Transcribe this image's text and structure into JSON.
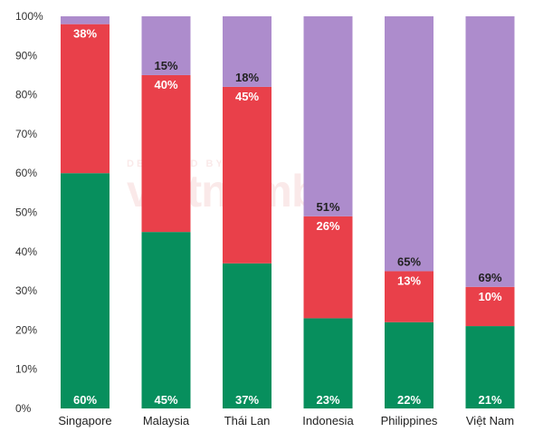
{
  "chart_data": {
    "type": "bar",
    "stacked": true,
    "categories": [
      "Singapore",
      "Malaysia",
      "Thái Lan",
      "Indonesia",
      "Philippines",
      "Việt Nam"
    ],
    "series": [
      {
        "values": [
          60,
          45,
          37,
          23,
          22,
          21
        ],
        "color": "#078f5d",
        "labels": [
          "60%",
          "45%",
          "37%",
          "23%",
          "22%",
          "21%"
        ],
        "label_color": "#ffffff"
      },
      {
        "values": [
          38,
          40,
          45,
          26,
          13,
          10
        ],
        "color": "#e9404a",
        "labels": [
          "38%",
          "40%",
          "45%",
          "26%",
          "13%",
          "10%"
        ],
        "label_color": "#ffffff"
      },
      {
        "values": [
          2,
          15,
          18,
          51,
          65,
          69
        ],
        "color": "#ad8ccc",
        "labels": [
          "",
          "15%",
          "18%",
          "51%",
          "65%",
          "69%"
        ],
        "label_color": "#222222"
      }
    ],
    "ylim": [
      0,
      100
    ],
    "yticks": [
      "0%",
      "10%",
      "20%",
      "30%",
      "40%",
      "50%",
      "60%",
      "70%",
      "80%",
      "90%",
      "100%"
    ],
    "grid": false
  },
  "watermark": {
    "small": "DESIGNED BY",
    "big": "vietnambiz"
  }
}
